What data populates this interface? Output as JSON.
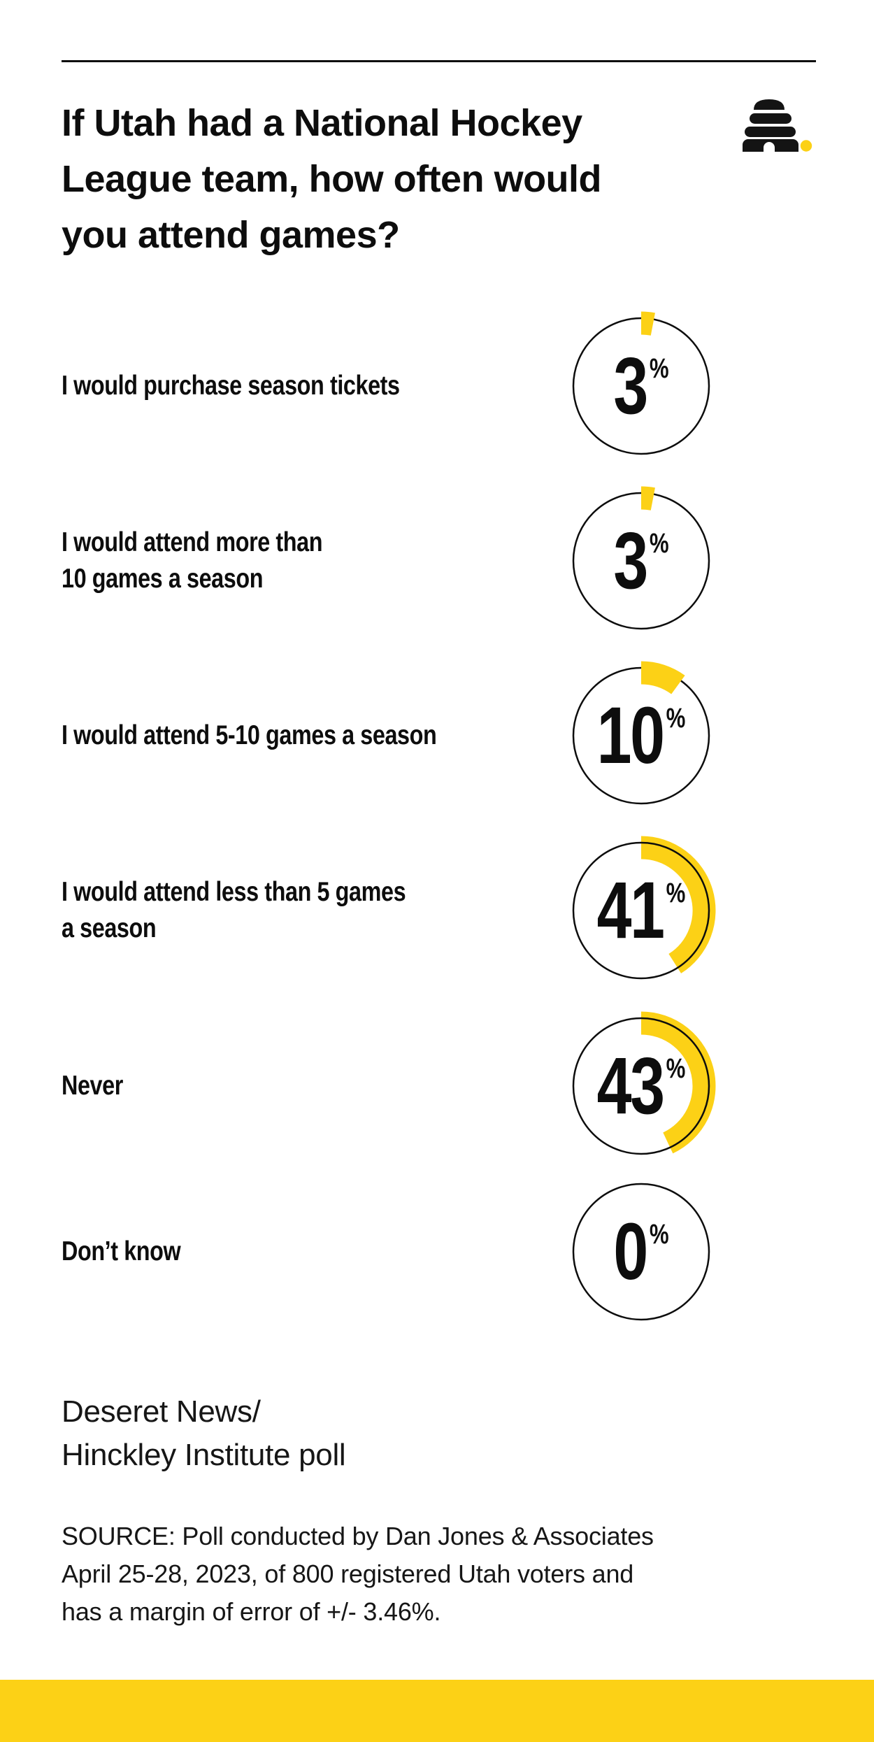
{
  "page": {
    "background": "#FFFFFF",
    "accent_yellow": "#FCD116",
    "ink_black": "#0D0D0D"
  },
  "header": {
    "title": "If Utah had a National Hockey League team, how often would you attend games?",
    "title_lines": [
      "If Utah had a National Hockey",
      "League team, how often would",
      "you attend games?"
    ],
    "logo": "deseret-news-beehive-logo"
  },
  "footer": {
    "attribution_lines": [
      "Deseret News/",
      "Hinckley Institute poll"
    ],
    "source_lines": [
      "SOURCE: Poll conducted by Dan Jones & Associates",
      "April 25-28, 2023, of 800 registered Utah voters and",
      "has a margin of error of +/- 3.46%."
    ]
  },
  "chart_data": {
    "type": "donut",
    "subtype": "gauge-per-category",
    "title": "If Utah had a National Hockey League team, how often would you attend games?",
    "categories": [
      "I would purchase season tickets",
      "I would attend more than 10 games a season",
      "I would attend 5-10 games a season",
      "I would attend less than 5 games a season",
      "Never",
      "Don’t know"
    ],
    "category_lines": [
      [
        "I would purchase season tickets"
      ],
      [
        "I would attend more than",
        "10 games a season"
      ],
      [
        "I would attend 5-10 games a season"
      ],
      [
        "I would attend less than 5 games",
        "a season"
      ],
      [
        "Never"
      ],
      [
        "Don’t know"
      ]
    ],
    "values": [
      3,
      3,
      10,
      41,
      43,
      0
    ],
    "unit": "%",
    "value_range": [
      0,
      100
    ],
    "arc_start": "12-o-clock-clockwise",
    "arc_color": "#FCD116",
    "ring_color": "#0D0D0D",
    "legend": "none",
    "grid": false
  }
}
